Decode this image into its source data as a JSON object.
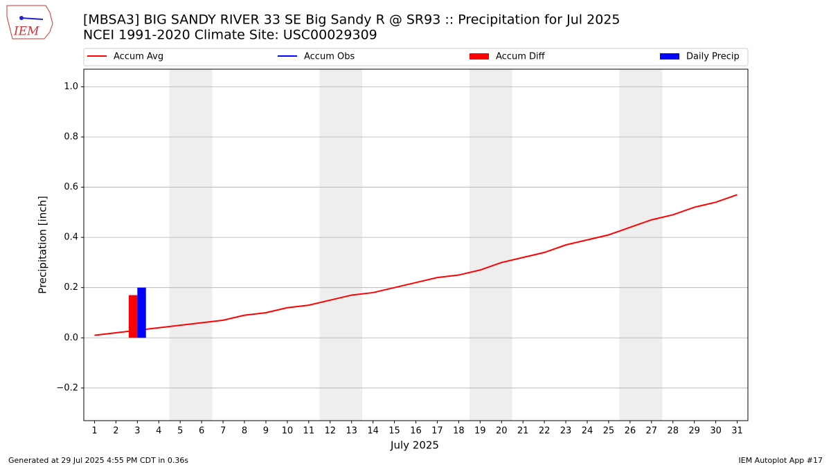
{
  "chart_data": {
    "type": "line",
    "title": "[MBSA3] BIG SANDY RIVER 33 SE Big Sandy R @ SR93 :: Precipitation for Jul 2025",
    "subtitle": "NCEI 1991-2020 Climate Site: USC00029309",
    "logo": "IEM",
    "x_label": "July 2025",
    "y_label": "Precipitation [inch]",
    "footer_left": "Generated at 29 Jul 2025 4:55 PM CDT in 0.36s",
    "footer_right": "IEM Autoplot App #17",
    "x": [
      1,
      2,
      3,
      4,
      5,
      6,
      7,
      8,
      9,
      10,
      11,
      12,
      13,
      14,
      15,
      16,
      17,
      18,
      19,
      20,
      21,
      22,
      23,
      24,
      25,
      26,
      27,
      28,
      29,
      30,
      31
    ],
    "xlim": [
      0.5,
      31.5
    ],
    "xticks": [
      1,
      2,
      3,
      4,
      5,
      6,
      7,
      8,
      9,
      10,
      11,
      12,
      13,
      14,
      15,
      16,
      17,
      18,
      19,
      20,
      21,
      22,
      23,
      24,
      25,
      26,
      27,
      28,
      29,
      30,
      31
    ],
    "ylim": [
      -0.33,
      1.07
    ],
    "yticks": [
      {
        "value": -0.2,
        "label": "−0.2"
      },
      {
        "value": 0,
        "label": "0.0"
      },
      0.2,
      0.4,
      0.6,
      0.8,
      {
        "value": 1,
        "label": "1.0"
      }
    ],
    "grid": true,
    "shaded_ranges": [
      [
        4.5,
        6.5
      ],
      [
        11.5,
        13.5
      ],
      [
        18.5,
        20.5
      ],
      [
        25.5,
        27.5
      ]
    ],
    "shade_color": "#eeeeee",
    "series": [
      {
        "name": "Accum Avg",
        "kind": "line",
        "color": "#ff0000",
        "values": [
          0.01,
          0.02,
          0.03,
          0.04,
          0.05,
          0.06,
          0.07,
          0.09,
          0.1,
          0.12,
          0.13,
          0.15,
          0.17,
          0.18,
          0.2,
          0.22,
          0.24,
          0.25,
          0.27,
          0.3,
          0.32,
          0.34,
          0.37,
          0.39,
          0.41,
          0.44,
          0.47,
          0.49,
          0.52,
          0.54,
          0.57
        ]
      },
      {
        "name": "Accum Obs",
        "kind": "line",
        "color": "#0000ff",
        "values": [
          null,
          null,
          null,
          null,
          null,
          null,
          null,
          null,
          null,
          null,
          null,
          null,
          null,
          null,
          null,
          null,
          null,
          null,
          null,
          null,
          null,
          null,
          null,
          null,
          null,
          null,
          null,
          null,
          null,
          null,
          null
        ]
      },
      {
        "name": "Accum Diff",
        "kind": "bar",
        "color": "#ff0000",
        "values": [
          null,
          null,
          0.17,
          null,
          null,
          null,
          null,
          null,
          null,
          null,
          null,
          null,
          null,
          null,
          null,
          null,
          null,
          null,
          null,
          null,
          null,
          null,
          null,
          null,
          null,
          null,
          null,
          null,
          null,
          null,
          null
        ]
      },
      {
        "name": "Daily Precip",
        "kind": "bar",
        "color": "#0000ff",
        "values": [
          null,
          null,
          0.2,
          null,
          null,
          null,
          null,
          null,
          null,
          null,
          null,
          null,
          null,
          null,
          null,
          null,
          null,
          null,
          null,
          null,
          null,
          null,
          null,
          null,
          null,
          null,
          null,
          null,
          null,
          null,
          null
        ]
      }
    ]
  }
}
